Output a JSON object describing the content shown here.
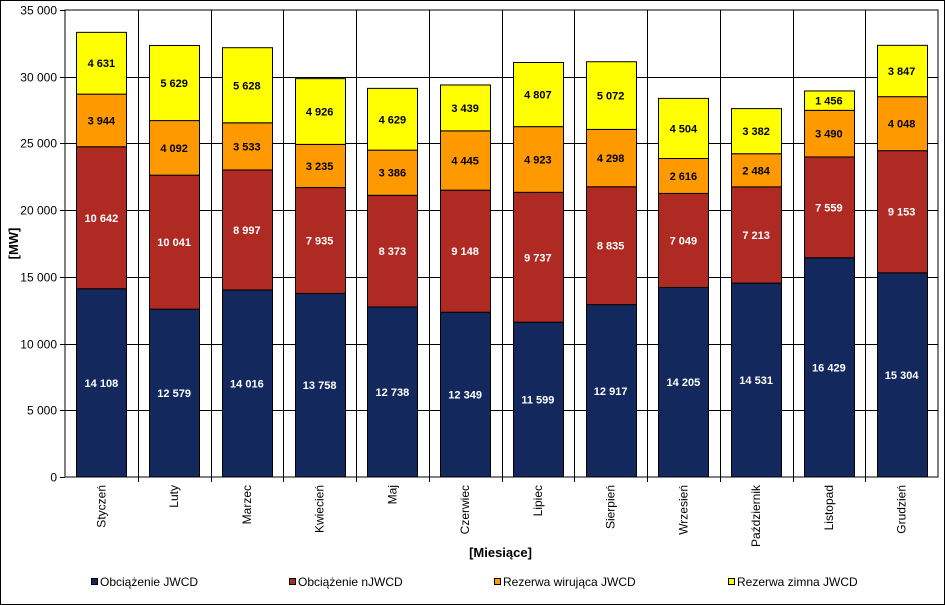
{
  "chart_data": {
    "type": "bar",
    "stacked": true,
    "xlabel": "[Miesiące]",
    "ylabel": "[MW]",
    "ylim": [
      0,
      35000
    ],
    "ytick_step": 5000,
    "y_ticks": [
      "0",
      "5 000",
      "10 000",
      "15 000",
      "20 000",
      "25 000",
      "30 000",
      "35 000"
    ],
    "grid": true,
    "legend_position": "bottom",
    "categories": [
      "Styczeń",
      "Luty",
      "Marzec",
      "Kwiecień",
      "Maj",
      "Czerwiec",
      "Lipiec",
      "Sierpień",
      "Wrzesień",
      "Październik",
      "Listopad",
      "Grudzień"
    ],
    "series": [
      {
        "name": "Obciążenie JWCD",
        "color": "#13295E",
        "label_color": "#ffffff",
        "values": [
          14108,
          12579,
          14016,
          13758,
          12738,
          12349,
          11599,
          12917,
          14205,
          14531,
          16429,
          15304
        ],
        "labels": [
          "14 108",
          "12 579",
          "14 016",
          "13 758",
          "12 738",
          "12 349",
          "11 599",
          "12 917",
          "14 205",
          "14 531",
          "16 429",
          "15 304"
        ]
      },
      {
        "name": "Obciążenie nJWCD",
        "color": "#B02A24",
        "label_color": "#ffffff",
        "values": [
          10642,
          10041,
          8997,
          7935,
          8373,
          9148,
          9737,
          8835,
          7049,
          7213,
          7559,
          9153
        ],
        "labels": [
          "10 642",
          "10 041",
          "8 997",
          "7 935",
          "8 373",
          "9 148",
          "9 737",
          "8 835",
          "7 049",
          "7 213",
          "7 559",
          "9 153"
        ]
      },
      {
        "name": "Rezerwa wirująca JWCD",
        "color": "#FF9900",
        "label_color": "#000000",
        "values": [
          3944,
          4092,
          3533,
          3235,
          3386,
          4445,
          4923,
          4298,
          2616,
          2484,
          3490,
          4048
        ],
        "labels": [
          "3 944",
          "4 092",
          "3 533",
          "3 235",
          "3 386",
          "4 445",
          "4 923",
          "4 298",
          "2 616",
          "2 484",
          "3 490",
          "4 048"
        ]
      },
      {
        "name": "Rezerwa zimna JWCD",
        "color": "#FFFF00",
        "label_color": "#000000",
        "values": [
          4631,
          5629,
          5628,
          4926,
          4629,
          3439,
          4807,
          5072,
          4504,
          3382,
          1456,
          3847
        ],
        "labels": [
          "4 631",
          "5 629",
          "5 628",
          "4 926",
          "4 629",
          "3 439",
          "4 807",
          "5 072",
          "4 504",
          "3 382",
          "1 456",
          "3 847"
        ]
      }
    ]
  }
}
